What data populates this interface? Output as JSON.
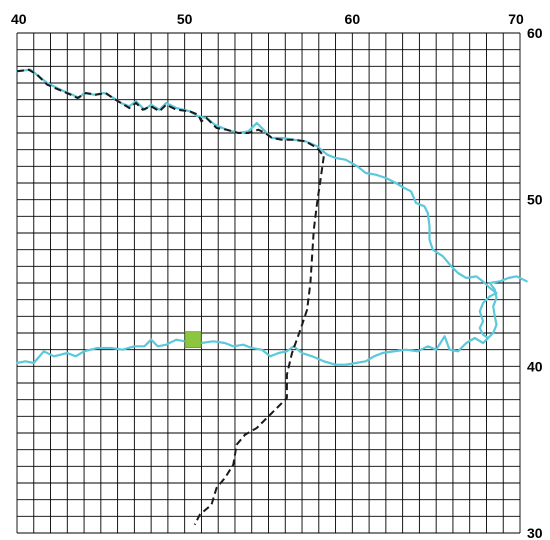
{
  "map": {
    "x_axis": {
      "min": 40,
      "max": 70,
      "grid_step": 1,
      "labels": [
        {
          "value": 40,
          "text": "40"
        },
        {
          "value": 50,
          "text": "50"
        },
        {
          "value": 60,
          "text": "60"
        },
        {
          "value": 70,
          "text": "70"
        }
      ]
    },
    "y_axis": {
      "min": 30,
      "max": 60,
      "grid_step": 1,
      "labels": [
        {
          "value": 60,
          "text": "60"
        },
        {
          "value": 50,
          "text": "50"
        },
        {
          "value": 40,
          "text": "40"
        },
        {
          "value": 30,
          "text": "30"
        }
      ]
    },
    "colors": {
      "background": "#ffffff",
      "grid": "#000000",
      "river": "#5bc8dc",
      "border": "#1a1a1a",
      "marker": "#8cc63f"
    },
    "marker": {
      "shape": "square",
      "x": 50.5,
      "y": 41.6
    },
    "river_north": [
      [
        40.0,
        57.7
      ],
      [
        40.8,
        57.8
      ],
      [
        41.3,
        57.4
      ],
      [
        41.8,
        57.0
      ],
      [
        42.6,
        56.6
      ],
      [
        43.3,
        56.3
      ],
      [
        43.7,
        56.1
      ],
      [
        44.0,
        56.4
      ],
      [
        44.6,
        56.3
      ],
      [
        45.2,
        56.4
      ],
      [
        45.6,
        56.2
      ],
      [
        46.2,
        55.8
      ],
      [
        46.7,
        55.6
      ],
      [
        47.1,
        55.9
      ],
      [
        47.6,
        55.4
      ],
      [
        48.0,
        55.7
      ],
      [
        48.5,
        55.4
      ],
      [
        48.9,
        55.8
      ],
      [
        49.5,
        55.5
      ],
      [
        50.3,
        55.3
      ],
      [
        50.8,
        55.0
      ],
      [
        51.3,
        54.9
      ],
      [
        51.8,
        54.5
      ],
      [
        52.5,
        54.2
      ],
      [
        53.2,
        54.0
      ],
      [
        53.8,
        54.1
      ],
      [
        54.3,
        54.6
      ],
      [
        54.7,
        54.2
      ],
      [
        55.2,
        53.7
      ],
      [
        55.8,
        53.7
      ],
      [
        56.5,
        53.6
      ],
      [
        57.2,
        53.5
      ],
      [
        57.9,
        53.2
      ],
      [
        58.5,
        52.7
      ],
      [
        59.0,
        52.5
      ],
      [
        59.6,
        52.4
      ],
      [
        60.3,
        52.0
      ],
      [
        60.8,
        51.6
      ],
      [
        61.4,
        51.5
      ],
      [
        62.0,
        51.3
      ],
      [
        62.6,
        51.0
      ],
      [
        63.1,
        50.7
      ],
      [
        63.5,
        50.5
      ],
      [
        63.8,
        49.8
      ],
      [
        64.3,
        49.6
      ],
      [
        64.5,
        49.2
      ],
      [
        64.6,
        48.4
      ],
      [
        64.6,
        47.6
      ],
      [
        64.8,
        47.0
      ],
      [
        65.4,
        46.6
      ],
      [
        65.9,
        46.0
      ],
      [
        66.3,
        45.6
      ],
      [
        66.8,
        45.3
      ],
      [
        67.4,
        45.4
      ],
      [
        67.9,
        45.0
      ],
      [
        68.2,
        44.7
      ],
      [
        68.6,
        44.4
      ],
      [
        68.2,
        44.2
      ],
      [
        67.8,
        43.8
      ],
      [
        67.6,
        43.3
      ],
      [
        67.8,
        42.7
      ],
      [
        67.6,
        42.3
      ],
      [
        67.8,
        41.9
      ],
      [
        68.1,
        41.7
      ],
      [
        68.0,
        41.6
      ]
    ],
    "river_south": [
      [
        40.0,
        40.2
      ],
      [
        40.5,
        40.3
      ],
      [
        41.0,
        40.2
      ],
      [
        41.6,
        40.9
      ],
      [
        42.2,
        40.6
      ],
      [
        43.0,
        40.8
      ],
      [
        43.5,
        40.6
      ],
      [
        44.0,
        40.9
      ],
      [
        44.8,
        41.1
      ],
      [
        45.6,
        41.1
      ],
      [
        46.3,
        41.0
      ],
      [
        47.0,
        41.2
      ],
      [
        47.6,
        41.2
      ],
      [
        48.0,
        41.6
      ],
      [
        48.4,
        41.2
      ],
      [
        48.9,
        41.3
      ],
      [
        49.5,
        41.6
      ],
      [
        50.0,
        41.5
      ],
      [
        50.5,
        41.6
      ],
      [
        51.0,
        41.4
      ],
      [
        51.7,
        41.5
      ],
      [
        52.4,
        41.4
      ],
      [
        52.9,
        41.2
      ],
      [
        53.5,
        41.3
      ],
      [
        54.0,
        41.1
      ],
      [
        54.6,
        41.0
      ],
      [
        55.1,
        40.6
      ],
      [
        55.6,
        40.8
      ],
      [
        56.1,
        40.9
      ],
      [
        56.5,
        41.2
      ],
      [
        57.0,
        40.8
      ],
      [
        57.6,
        40.6
      ],
      [
        58.3,
        40.3
      ],
      [
        59.0,
        40.1
      ],
      [
        59.6,
        40.1
      ],
      [
        60.2,
        40.2
      ],
      [
        60.8,
        40.3
      ],
      [
        61.3,
        40.6
      ],
      [
        61.8,
        40.8
      ],
      [
        62.5,
        40.9
      ],
      [
        63.2,
        41.0
      ],
      [
        63.9,
        40.9
      ],
      [
        64.5,
        41.2
      ],
      [
        65.0,
        41.0
      ],
      [
        65.5,
        41.8
      ],
      [
        65.8,
        41.0
      ],
      [
        66.3,
        40.9
      ],
      [
        66.8,
        41.4
      ],
      [
        67.3,
        41.7
      ],
      [
        67.8,
        41.4
      ],
      [
        68.1,
        41.7
      ],
      [
        68.4,
        42.0
      ],
      [
        68.6,
        42.5
      ],
      [
        68.5,
        43.0
      ],
      [
        68.4,
        43.6
      ],
      [
        68.6,
        44.1
      ],
      [
        68.5,
        44.6
      ],
      [
        68.2,
        45.0
      ],
      [
        68.8,
        45.1
      ],
      [
        69.3,
        45.3
      ],
      [
        69.8,
        45.4
      ],
      [
        70.0,
        45.3
      ],
      [
        70.4,
        45.1
      ]
    ],
    "border_north": [
      [
        40.0,
        57.7
      ],
      [
        40.7,
        57.8
      ],
      [
        41.2,
        57.5
      ],
      [
        41.8,
        56.9
      ],
      [
        42.5,
        56.6
      ],
      [
        43.2,
        56.3
      ],
      [
        43.6,
        56.1
      ],
      [
        44.1,
        56.4
      ],
      [
        44.7,
        56.3
      ],
      [
        45.3,
        56.4
      ],
      [
        45.7,
        56.1
      ],
      [
        46.2,
        55.8
      ],
      [
        46.7,
        55.5
      ],
      [
        47.1,
        55.8
      ],
      [
        47.5,
        55.4
      ],
      [
        48.0,
        55.6
      ],
      [
        48.5,
        55.3
      ],
      [
        48.9,
        55.7
      ],
      [
        49.5,
        55.4
      ],
      [
        50.3,
        55.3
      ],
      [
        50.8,
        55.1
      ],
      [
        51.0,
        54.7
      ],
      [
        51.3,
        54.9
      ],
      [
        51.9,
        54.3
      ],
      [
        52.5,
        54.2
      ],
      [
        53.2,
        54.0
      ],
      [
        53.8,
        54.0
      ],
      [
        54.4,
        54.2
      ],
      [
        54.8,
        54.0
      ],
      [
        55.2,
        53.7
      ],
      [
        55.8,
        53.6
      ],
      [
        56.5,
        53.6
      ],
      [
        57.2,
        53.5
      ],
      [
        57.9,
        53.1
      ],
      [
        58.3,
        52.6
      ]
    ],
    "border_south": [
      [
        58.3,
        52.6
      ],
      [
        58.1,
        51.2
      ],
      [
        57.9,
        49.8
      ],
      [
        57.7,
        48.2
      ],
      [
        57.6,
        46.6
      ],
      [
        57.5,
        45.0
      ],
      [
        57.3,
        43.4
      ],
      [
        56.9,
        42.2
      ],
      [
        56.4,
        40.8
      ],
      [
        56.1,
        39.5
      ],
      [
        56.1,
        38.1
      ],
      [
        55.5,
        37.5
      ],
      [
        54.9,
        36.9
      ],
      [
        54.3,
        36.3
      ],
      [
        53.6,
        35.9
      ],
      [
        53.1,
        35.3
      ],
      [
        52.9,
        34.1
      ],
      [
        52.4,
        33.3
      ],
      [
        51.9,
        32.7
      ],
      [
        51.6,
        31.7
      ],
      [
        50.9,
        31.1
      ],
      [
        50.6,
        30.5
      ]
    ]
  }
}
